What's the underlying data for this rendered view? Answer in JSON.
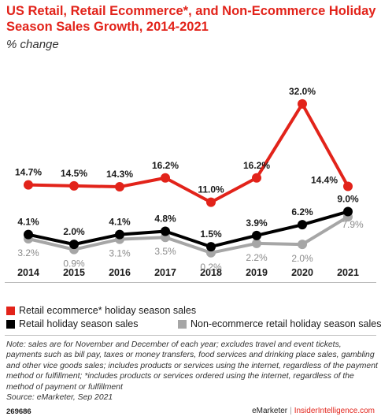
{
  "chart_data": {
    "type": "line",
    "title": "US Retail, Retail Ecommerce*, and Non-Ecommerce Holiday Season Sales Growth, 2014-2021",
    "subtitle": "% change",
    "categories": [
      "2014",
      "2015",
      "2016",
      "2017",
      "2018",
      "2019",
      "2020",
      "2021"
    ],
    "series": [
      {
        "name": "Retail ecommerce* holiday season sales",
        "color": "#e2231a",
        "values": [
          14.7,
          14.5,
          14.3,
          16.2,
          11.0,
          16.2,
          32.0,
          14.4
        ],
        "labels": [
          "14.7%",
          "14.5%",
          "14.3%",
          "16.2%",
          "11.0%",
          "16.2%",
          "32.0%",
          "14.4%"
        ]
      },
      {
        "name": "Retail holiday season sales",
        "color": "#000000",
        "values": [
          4.1,
          2.0,
          4.1,
          4.8,
          1.5,
          3.9,
          6.2,
          9.0
        ],
        "labels": [
          "4.1%",
          "2.0%",
          "4.1%",
          "4.8%",
          "1.5%",
          "3.9%",
          "6.2%",
          "9.0%"
        ]
      },
      {
        "name": "Non-ecommerce retail holiday season sales",
        "color": "#a6a6a6",
        "values": [
          3.2,
          0.9,
          3.1,
          3.5,
          0.2,
          2.2,
          2.0,
          7.9
        ],
        "labels": [
          "3.2%",
          "0.9%",
          "3.1%",
          "3.5%",
          "0.2%",
          "2.2%",
          "2.0%",
          "7.9%"
        ]
      }
    ],
    "legend_position": "bottom",
    "grid": false
  },
  "note": "Note: sales are for November and December of each year; excludes travel and event tickets, payments such as bill pay, taxes or money transfers, food services and drinking place sales, gambling and other vice goods sales; includes products or services using the internet, regardless of the payment method or fulfillment; *includes products or services ordered using the internet, regardless of the method of payment or fulfillment",
  "source": "Source: eMarketer, Sep 2021",
  "footer": {
    "chart_id": "269686",
    "brand": "eMarketer",
    "separator": "|",
    "site": "InsiderIntelligence.com"
  }
}
